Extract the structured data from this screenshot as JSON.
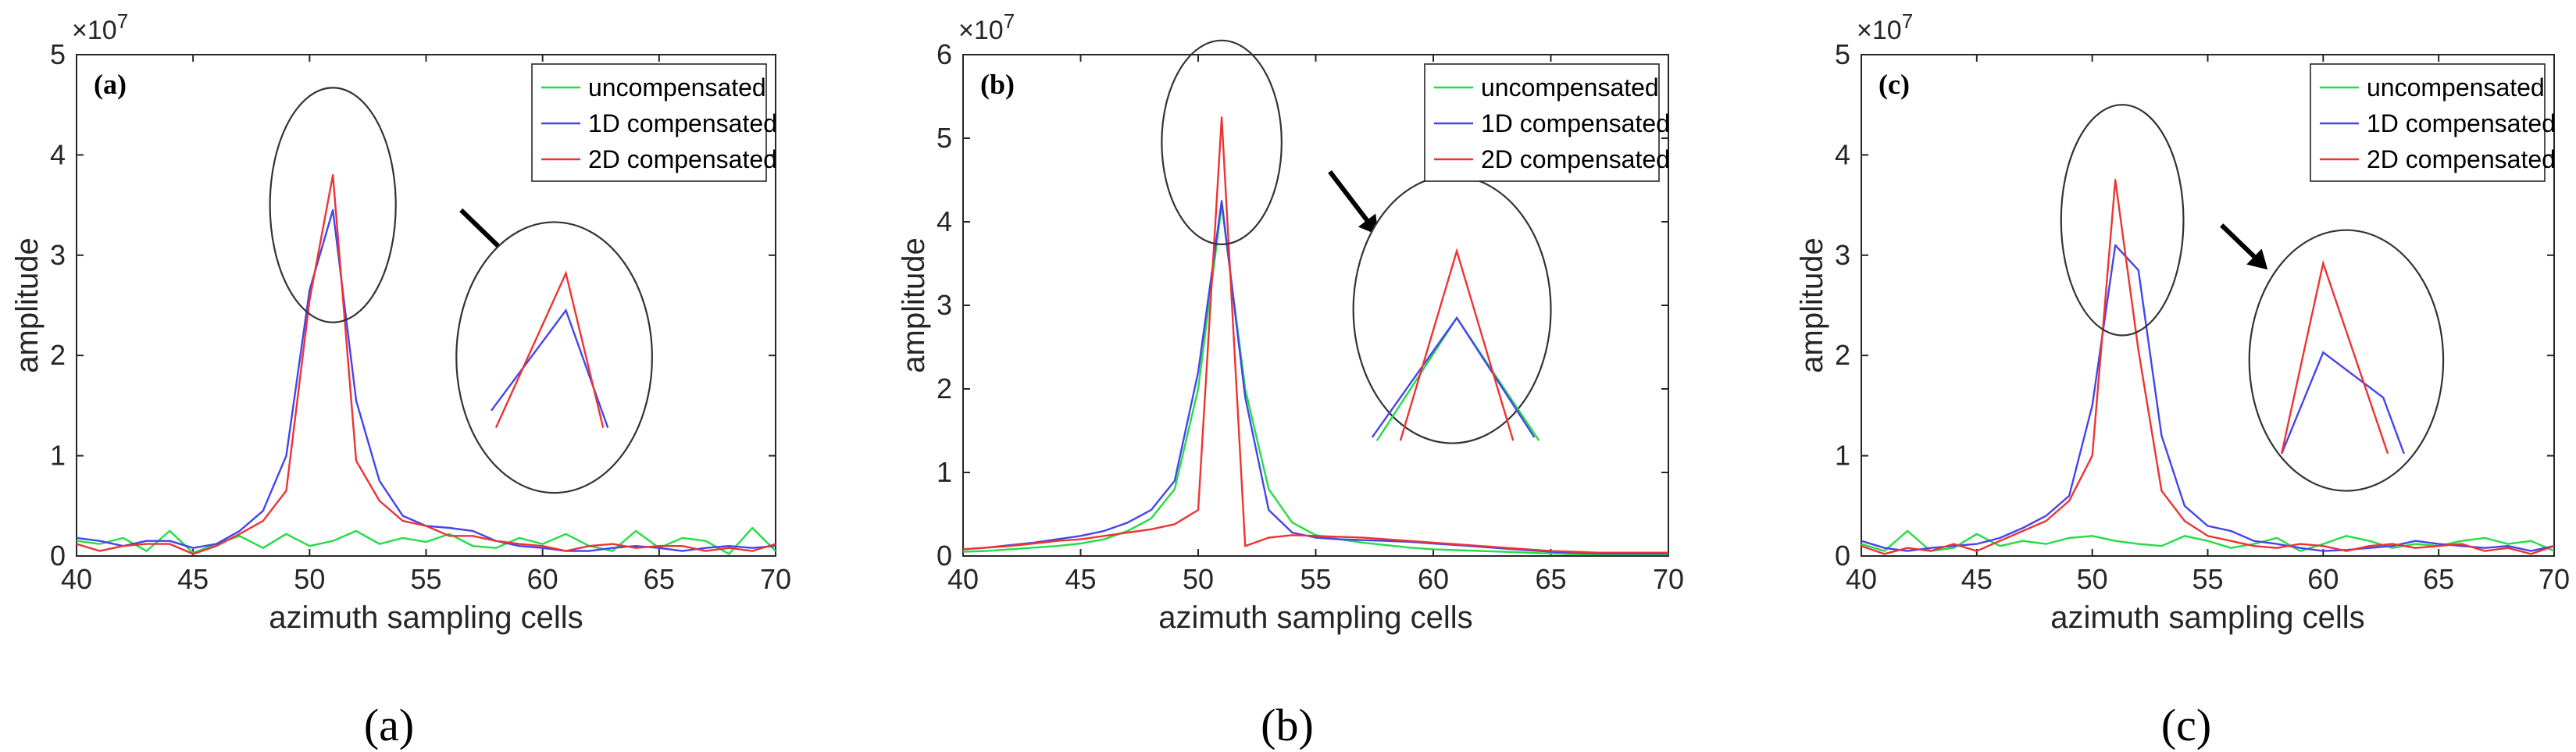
{
  "chart_data": [
    {
      "type": "line",
      "panel_label": "(a)",
      "caption": "(a)",
      "exponent": "×10",
      "exponent_power": "7",
      "xlabel": "azimuth sampling cells",
      "ylabel": "amplitude",
      "xlim": [
        40,
        70
      ],
      "ylim": [
        0,
        5
      ],
      "xticks": [
        "40",
        "45",
        "50",
        "55",
        "60",
        "65",
        "70"
      ],
      "yticks": [
        "0",
        "1",
        "2",
        "3",
        "4",
        "5"
      ],
      "legend_position": "top-right",
      "colors": {
        "uncompensated": "#22dd44",
        "1D compensated": "#4444ee",
        "2D compensated": "#ee3333"
      },
      "x": [
        40,
        41,
        42,
        43,
        44,
        45,
        46,
        47,
        48,
        49,
        50,
        51,
        52,
        53,
        54,
        55,
        56,
        57,
        58,
        59,
        60,
        61,
        62,
        63,
        64,
        65,
        66,
        67,
        68,
        69,
        70
      ],
      "series": [
        {
          "name": "uncompensated",
          "values": [
            0.15,
            0.12,
            0.18,
            0.05,
            0.25,
            0.03,
            0.12,
            0.2,
            0.08,
            0.22,
            0.1,
            0.15,
            0.25,
            0.12,
            0.18,
            0.14,
            0.22,
            0.1,
            0.08,
            0.18,
            0.12,
            0.22,
            0.1,
            0.05,
            0.25,
            0.08,
            0.18,
            0.15,
            0.02,
            0.28,
            0.05
          ]
        },
        {
          "name": "1D compensated",
          "values": [
            0.18,
            0.15,
            0.1,
            0.15,
            0.15,
            0.08,
            0.12,
            0.25,
            0.45,
            1.0,
            2.65,
            3.45,
            1.55,
            0.75,
            0.4,
            0.3,
            0.28,
            0.25,
            0.15,
            0.1,
            0.08,
            0.05,
            0.05,
            0.08,
            0.1,
            0.08,
            0.05,
            0.08,
            0.1,
            0.08,
            0.1
          ]
        },
        {
          "name": "2D compensated",
          "values": [
            0.12,
            0.05,
            0.1,
            0.12,
            0.12,
            0.02,
            0.1,
            0.22,
            0.35,
            0.65,
            2.55,
            3.8,
            0.95,
            0.55,
            0.35,
            0.3,
            0.2,
            0.2,
            0.15,
            0.12,
            0.1,
            0.05,
            0.1,
            0.12,
            0.08,
            0.1,
            0.1,
            0.05,
            0.08,
            0.05,
            0.12
          ]
        }
      ],
      "ellipse": {
        "cx": 51,
        "cy": 3.5,
        "rx": 2.7,
        "ry": 1.17
      },
      "inset_ellipse": {
        "cx": 60.5,
        "cy": 1.98,
        "rx": 4.2,
        "ry": 1.35
      },
      "arrow": {
        "x1": 56.5,
        "y1": 3.45,
        "x2": 58.5,
        "y2": 3.0
      },
      "inset_lines": [
        {
          "name": "1D compensated",
          "points": [
            [
              57.8,
              1.45
            ],
            [
              61.0,
              2.45
            ],
            [
              62.8,
              1.28
            ]
          ]
        },
        {
          "name": "2D compensated",
          "points": [
            [
              58.0,
              1.28
            ],
            [
              61.0,
              2.82
            ],
            [
              62.6,
              1.28
            ]
          ]
        }
      ]
    },
    {
      "type": "line",
      "panel_label": "(b)",
      "caption": "(b)",
      "exponent": "×10",
      "exponent_power": "7",
      "xlabel": "azimuth sampling cells",
      "ylabel": "amplitude",
      "xlim": [
        40,
        70
      ],
      "ylim": [
        0,
        6
      ],
      "xticks": [
        "40",
        "45",
        "50",
        "55",
        "60",
        "65",
        "70"
      ],
      "yticks": [
        "0",
        "1",
        "2",
        "3",
        "4",
        "5",
        "6"
      ],
      "legend_position": "top-right",
      "colors": {
        "uncompensated": "#22dd44",
        "1D compensated": "#4444ee",
        "2D compensated": "#ee3333"
      },
      "x": [
        40,
        41,
        42,
        43,
        44,
        45,
        46,
        47,
        48,
        49,
        50,
        51,
        52,
        53,
        54,
        55,
        56,
        57,
        58,
        59,
        60,
        61,
        62,
        63,
        64,
        65,
        66,
        67,
        68,
        69,
        70
      ],
      "series": [
        {
          "name": "uncompensated",
          "values": [
            0.05,
            0.06,
            0.08,
            0.1,
            0.12,
            0.15,
            0.2,
            0.3,
            0.45,
            0.8,
            2.0,
            4.2,
            2.0,
            0.8,
            0.4,
            0.25,
            0.2,
            0.16,
            0.13,
            0.1,
            0.08,
            0.07,
            0.06,
            0.05,
            0.04,
            0.03,
            0.02,
            0.02,
            0.02,
            0.02,
            0.02
          ]
        },
        {
          "name": "1D compensated",
          "values": [
            0.08,
            0.1,
            0.13,
            0.16,
            0.2,
            0.24,
            0.3,
            0.4,
            0.55,
            0.9,
            2.2,
            4.25,
            1.9,
            0.55,
            0.28,
            0.22,
            0.2,
            0.19,
            0.18,
            0.17,
            0.15,
            0.13,
            0.11,
            0.09,
            0.07,
            0.05,
            0.04,
            0.03,
            0.03,
            0.03,
            0.03
          ]
        },
        {
          "name": "2D compensated",
          "values": [
            0.08,
            0.1,
            0.12,
            0.15,
            0.18,
            0.2,
            0.24,
            0.28,
            0.32,
            0.38,
            0.55,
            5.25,
            0.12,
            0.22,
            0.25,
            0.24,
            0.23,
            0.22,
            0.2,
            0.18,
            0.16,
            0.14,
            0.12,
            0.1,
            0.08,
            0.06,
            0.05,
            0.04,
            0.04,
            0.04,
            0.04
          ]
        }
      ],
      "ellipse": {
        "cx": 51,
        "cy": 4.95,
        "rx": 2.55,
        "ry": 1.22
      },
      "inset_ellipse": {
        "cx": 60.8,
        "cy": 2.95,
        "rx": 4.2,
        "ry": 1.6
      },
      "arrow": {
        "x1": 55.6,
        "y1": 4.6,
        "x2": 57.5,
        "y2": 3.9
      },
      "inset_lines": [
        {
          "name": "uncompensated",
          "points": [
            [
              57.6,
              1.38
            ],
            [
              61.0,
              2.85
            ],
            [
              64.5,
              1.38
            ]
          ]
        },
        {
          "name": "1D compensated",
          "points": [
            [
              57.4,
              1.42
            ],
            [
              61.0,
              2.85
            ],
            [
              64.3,
              1.42
            ]
          ]
        },
        {
          "name": "2D compensated",
          "points": [
            [
              58.6,
              1.38
            ],
            [
              61.0,
              3.65
            ],
            [
              63.4,
              1.38
            ]
          ]
        }
      ]
    },
    {
      "type": "line",
      "panel_label": "(c)",
      "caption": "(c)",
      "exponent": "×10",
      "exponent_power": "7",
      "xlabel": "azimuth sampling cells",
      "ylabel": "amplitude",
      "xlim": [
        40,
        70
      ],
      "ylim": [
        0,
        5
      ],
      "xticks": [
        "40",
        "45",
        "50",
        "55",
        "60",
        "65",
        "70"
      ],
      "yticks": [
        "0",
        "1",
        "2",
        "3",
        "4",
        "5"
      ],
      "legend_position": "top-right",
      "colors": {
        "uncompensated": "#22dd44",
        "1D compensated": "#4444ee",
        "2D compensated": "#ee3333"
      },
      "x": [
        40,
        41,
        42,
        43,
        44,
        45,
        46,
        47,
        48,
        49,
        50,
        51,
        52,
        53,
        54,
        55,
        56,
        57,
        58,
        59,
        60,
        61,
        62,
        63,
        64,
        65,
        66,
        67,
        68,
        69,
        70
      ],
      "series": [
        {
          "name": "uncompensated",
          "values": [
            0.12,
            0.05,
            0.25,
            0.05,
            0.08,
            0.22,
            0.1,
            0.15,
            0.12,
            0.18,
            0.2,
            0.15,
            0.12,
            0.1,
            0.2,
            0.15,
            0.08,
            0.12,
            0.18,
            0.05,
            0.12,
            0.2,
            0.15,
            0.08,
            0.12,
            0.1,
            0.15,
            0.18,
            0.12,
            0.15,
            0.05
          ]
        },
        {
          "name": "1D compensated",
          "values": [
            0.15,
            0.08,
            0.05,
            0.08,
            0.1,
            0.12,
            0.18,
            0.28,
            0.4,
            0.6,
            1.5,
            3.1,
            2.85,
            1.2,
            0.5,
            0.3,
            0.25,
            0.15,
            0.12,
            0.08,
            0.05,
            0.06,
            0.08,
            0.1,
            0.15,
            0.12,
            0.1,
            0.08,
            0.1,
            0.05,
            0.1
          ]
        },
        {
          "name": "2D compensated",
          "values": [
            0.1,
            0.02,
            0.08,
            0.05,
            0.12,
            0.05,
            0.15,
            0.25,
            0.35,
            0.55,
            1.0,
            3.75,
            2.05,
            0.65,
            0.35,
            0.2,
            0.15,
            0.1,
            0.08,
            0.12,
            0.1,
            0.05,
            0.1,
            0.12,
            0.08,
            0.1,
            0.12,
            0.05,
            0.08,
            0.02,
            0.1
          ]
        }
      ],
      "ellipse": {
        "cx": 51.3,
        "cy": 3.35,
        "rx": 2.65,
        "ry": 1.15
      },
      "inset_ellipse": {
        "cx": 61.0,
        "cy": 1.95,
        "rx": 4.2,
        "ry": 1.3
      },
      "arrow": {
        "x1": 55.6,
        "y1": 3.3,
        "x2": 57.4,
        "y2": 2.9
      },
      "inset_lines": [
        {
          "name": "1D compensated",
          "points": [
            [
              58.2,
              1.02
            ],
            [
              60.0,
              2.03
            ],
            [
              62.6,
              1.58
            ],
            [
              63.5,
              1.02
            ]
          ]
        },
        {
          "name": "2D compensated",
          "points": [
            [
              58.2,
              1.02
            ],
            [
              60.0,
              2.92
            ],
            [
              62.8,
              1.02
            ]
          ]
        }
      ]
    }
  ]
}
